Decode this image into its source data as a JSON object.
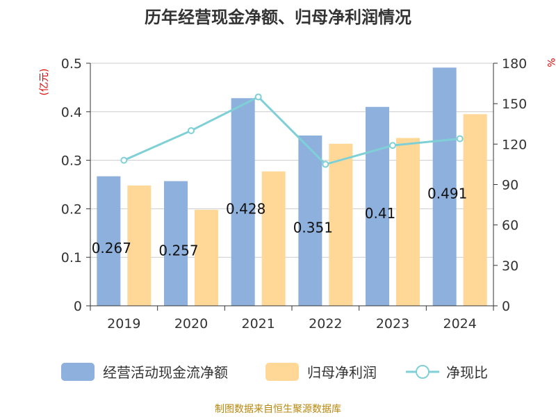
{
  "chart_data": {
    "type": "bar",
    "title": "历年经营现金净额、归母净利润情况",
    "categories": [
      "2019",
      "2020",
      "2021",
      "2022",
      "2023",
      "2024"
    ],
    "left_axis": {
      "unit": "(亿元)",
      "ylim": [
        0,
        0.5
      ],
      "ticks": [
        "0",
        "0.1",
        "0.2",
        "0.3",
        "0.4",
        "0.5"
      ]
    },
    "right_axis": {
      "unit": "%",
      "ylim": [
        0,
        180
      ],
      "ticks": [
        "0",
        "30",
        "60",
        "90",
        "120",
        "150",
        "180"
      ]
    },
    "series": [
      {
        "name": "经营活动现金流净额",
        "type": "bar",
        "axis": "left",
        "color": "#8eb0dc",
        "values": [
          0.267,
          0.257,
          0.428,
          0.351,
          0.41,
          0.491
        ],
        "labels": [
          "0.267",
          "0.257",
          "0.428",
          "0.351",
          "0.41",
          "0.491"
        ]
      },
      {
        "name": "归母净利润",
        "type": "bar",
        "axis": "left",
        "color": "#ffd898",
        "values": [
          0.248,
          0.198,
          0.277,
          0.334,
          0.346,
          0.395
        ]
      },
      {
        "name": "净现比",
        "type": "line",
        "axis": "right",
        "color": "#7fd0d6",
        "values": [
          108,
          130,
          155,
          105,
          119,
          124
        ]
      }
    ],
    "grid": true,
    "legend_position": "bottom"
  },
  "footer": {
    "source": "制图数据来自恒生聚源数据库"
  }
}
